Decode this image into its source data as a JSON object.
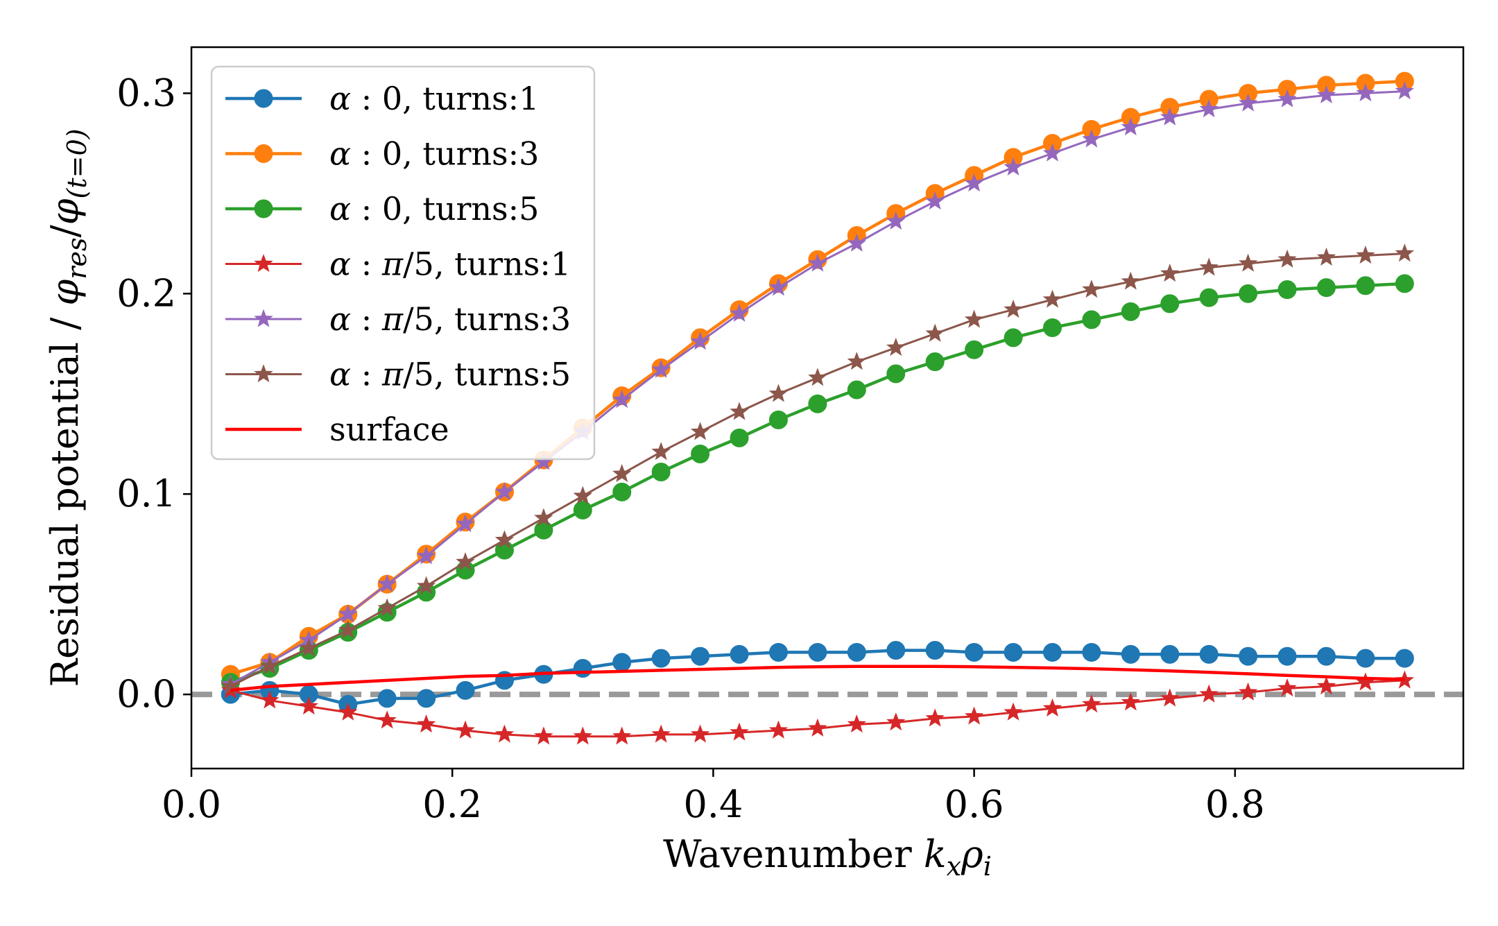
{
  "chart_data": {
    "type": "line",
    "xlabel": "Wavenumber k_x ρ_i",
    "ylabel": "Residual potential / φ_res/φ_(t=0)",
    "xlim": [
      0.0,
      0.975
    ],
    "ylim": [
      -0.037,
      0.323
    ],
    "xticks": [
      "0.0",
      "0.2",
      "0.4",
      "0.6",
      "0.8"
    ],
    "yticks": [
      "0.0",
      "0.1",
      "0.2",
      "0.3"
    ],
    "xtick_values": [
      0.0,
      0.2,
      0.4,
      0.6,
      0.8
    ],
    "ytick_values": [
      0.0,
      0.1,
      0.2,
      0.3
    ],
    "grid": false,
    "legend_position": "upper-left",
    "reference_line": {
      "y": 0.0,
      "style": "dashed",
      "color": "#999999"
    },
    "x": [
      0.03,
      0.06,
      0.09,
      0.12,
      0.15,
      0.18,
      0.21,
      0.24,
      0.27,
      0.3,
      0.33,
      0.36,
      0.39,
      0.42,
      0.45,
      0.48,
      0.51,
      0.54,
      0.57,
      0.6,
      0.63,
      0.66,
      0.69,
      0.72,
      0.75,
      0.78,
      0.81,
      0.84,
      0.87,
      0.9,
      0.93
    ],
    "series": [
      {
        "name": "α : 0, turns:1",
        "color": "#1f77b4",
        "marker": "circle",
        "values": [
          0.0,
          0.002,
          0.0,
          -0.005,
          -0.002,
          -0.002,
          0.002,
          0.007,
          0.01,
          0.013,
          0.016,
          0.018,
          0.019,
          0.02,
          0.021,
          0.021,
          0.021,
          0.022,
          0.022,
          0.021,
          0.021,
          0.021,
          0.021,
          0.02,
          0.02,
          0.02,
          0.019,
          0.019,
          0.019,
          0.018,
          0.018
        ]
      },
      {
        "name": "α : 0, turns:3",
        "color": "#ff7f0e",
        "marker": "circle",
        "values": [
          0.01,
          0.016,
          0.029,
          0.04,
          0.055,
          0.07,
          0.086,
          0.101,
          0.117,
          0.133,
          0.149,
          0.163,
          0.178,
          0.192,
          0.205,
          0.217,
          0.229,
          0.24,
          0.25,
          0.259,
          0.268,
          0.275,
          0.282,
          0.288,
          0.293,
          0.297,
          0.3,
          0.302,
          0.304,
          0.305,
          0.306
        ]
      },
      {
        "name": "α : 0, turns:5",
        "color": "#2ca02c",
        "marker": "circle",
        "values": [
          0.006,
          0.013,
          0.022,
          0.031,
          0.041,
          0.051,
          0.062,
          0.072,
          0.082,
          0.092,
          0.101,
          0.111,
          0.12,
          0.128,
          0.137,
          0.145,
          0.152,
          0.16,
          0.166,
          0.172,
          0.178,
          0.183,
          0.187,
          0.191,
          0.195,
          0.198,
          0.2,
          0.202,
          0.203,
          0.204,
          0.205
        ]
      },
      {
        "name": "α : π/5, turns:1",
        "color": "#d62728",
        "marker": "star",
        "values": [
          0.002,
          -0.003,
          -0.006,
          -0.009,
          -0.013,
          -0.015,
          -0.018,
          -0.02,
          -0.021,
          -0.021,
          -0.021,
          -0.02,
          -0.02,
          -0.019,
          -0.018,
          -0.017,
          -0.015,
          -0.014,
          -0.012,
          -0.011,
          -0.009,
          -0.007,
          -0.005,
          -0.004,
          -0.002,
          0.0,
          0.001,
          0.003,
          0.004,
          0.006,
          0.007
        ]
      },
      {
        "name": "α : π/5, turns:3",
        "color": "#9467bd",
        "marker": "star",
        "values": [
          0.005,
          0.016,
          0.027,
          0.04,
          0.055,
          0.069,
          0.085,
          0.101,
          0.116,
          0.131,
          0.147,
          0.162,
          0.176,
          0.19,
          0.203,
          0.215,
          0.225,
          0.236,
          0.246,
          0.255,
          0.263,
          0.27,
          0.277,
          0.283,
          0.288,
          0.292,
          0.295,
          0.297,
          0.299,
          0.3,
          0.301
        ]
      },
      {
        "name": "α : π/5, turns:5",
        "color": "#8c564b",
        "marker": "star",
        "values": [
          0.004,
          0.014,
          0.023,
          0.032,
          0.043,
          0.054,
          0.066,
          0.077,
          0.088,
          0.099,
          0.11,
          0.121,
          0.131,
          0.141,
          0.15,
          0.158,
          0.166,
          0.173,
          0.18,
          0.187,
          0.192,
          0.197,
          0.202,
          0.206,
          0.21,
          0.213,
          0.215,
          0.217,
          0.218,
          0.219,
          0.22
        ]
      },
      {
        "name": "surface",
        "color": "#ff0000",
        "marker": "none",
        "values": [
          0.002,
          0.004,
          0.005,
          0.006,
          0.007,
          0.008,
          0.009,
          0.0095,
          0.0105,
          0.011,
          0.0115,
          0.012,
          0.0125,
          0.013,
          0.0135,
          0.0138,
          0.014,
          0.014,
          0.014,
          0.0138,
          0.0135,
          0.0132,
          0.0128,
          0.0123,
          0.0117,
          0.011,
          0.0103,
          0.0095,
          0.0088,
          0.008,
          0.0075
        ]
      }
    ]
  }
}
